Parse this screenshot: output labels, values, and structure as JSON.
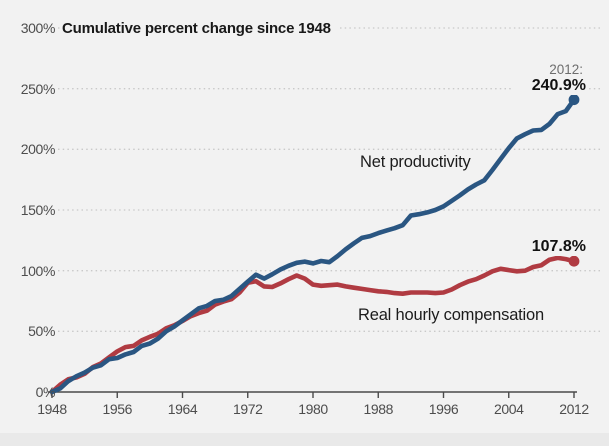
{
  "title": "Cumulative percent change since 1948",
  "annotations": {
    "callout_year": "2012:",
    "productivity_end_value": "240.9%",
    "compensation_end_value": "107.8%"
  },
  "colors": {
    "productivity_line": "#2a5682",
    "compensation_line": "#b03b42",
    "background": "#f2f2f2",
    "gridline": "#c9c9c9",
    "axis": "#4a4a4a",
    "tick_text": "#4d4d4d"
  },
  "chart_data": {
    "type": "line",
    "title": "Cumulative percent change since 1948",
    "xlabel": "",
    "ylabel": "Cumulative percent change since 1948",
    "xlim": [
      1948,
      2012
    ],
    "ylim": [
      0,
      300
    ],
    "grid": "dotted-horizontal",
    "legend_position": "inline-labels",
    "xticks": [
      "1948",
      "1956",
      "1964",
      "1972",
      "1980",
      "1988",
      "1996",
      "2004",
      "2012"
    ],
    "yticks": [
      "0%",
      "50%",
      "100%",
      "150%",
      "200%",
      "250%",
      "300%"
    ],
    "ytick_values": [
      0,
      50,
      100,
      150,
      200,
      250,
      300
    ],
    "xtick_values": [
      1948,
      1956,
      1964,
      1972,
      1980,
      1988,
      1996,
      2004,
      2012
    ],
    "x": [
      1948,
      1949,
      1950,
      1951,
      1952,
      1953,
      1954,
      1955,
      1956,
      1957,
      1958,
      1959,
      1960,
      1961,
      1962,
      1963,
      1964,
      1965,
      1966,
      1967,
      1968,
      1969,
      1970,
      1971,
      1972,
      1973,
      1974,
      1975,
      1976,
      1977,
      1978,
      1979,
      1980,
      1981,
      1982,
      1983,
      1984,
      1985,
      1986,
      1987,
      1988,
      1989,
      1990,
      1991,
      1992,
      1993,
      1994,
      1995,
      1996,
      1997,
      1998,
      1999,
      2000,
      2001,
      2002,
      2003,
      2004,
      2005,
      2006,
      2007,
      2008,
      2009,
      2010,
      2011,
      2012
    ],
    "series": [
      {
        "name": "Net productivity",
        "color": "#2a5682",
        "end_label": "240.9%",
        "values": [
          0,
          3,
          9,
          13,
          16,
          20,
          22,
          27,
          28,
          31,
          33,
          38,
          40,
          44,
          50,
          54,
          59,
          64,
          69,
          71,
          75,
          76,
          79,
          85,
          91,
          96.7,
          93.5,
          97,
          101,
          104,
          106.5,
          107.5,
          106,
          108,
          107,
          112,
          117.5,
          122.5,
          127,
          128.5,
          131,
          133,
          135,
          137.5,
          145.5,
          146.5,
          148,
          150,
          153,
          157.5,
          162,
          167,
          171,
          174.5,
          183,
          192,
          201,
          209,
          212.5,
          215.5,
          216,
          221,
          229,
          231.5,
          240.9
        ]
      },
      {
        "name": "Real hourly compensation",
        "color": "#b03b42",
        "end_label": "107.8%",
        "values": [
          0,
          6,
          10.5,
          12,
          15,
          20.5,
          23.5,
          28.5,
          33.5,
          37,
          38,
          42.5,
          45.5,
          48,
          52.5,
          55,
          58.5,
          62.5,
          65,
          67,
          72,
          74.5,
          76.5,
          82,
          90,
          91.3,
          87,
          86.5,
          89.5,
          93,
          96,
          93.5,
          88.5,
          87.5,
          88,
          88.5,
          87,
          86,
          85,
          84,
          83,
          82.5,
          81.5,
          81,
          82,
          82,
          82,
          81.5,
          82,
          84.5,
          88,
          91,
          93,
          96,
          99.5,
          101.5,
          100.5,
          99.5,
          100,
          103,
          104.5,
          109,
          110.5,
          109.5,
          107.8
        ]
      }
    ]
  }
}
